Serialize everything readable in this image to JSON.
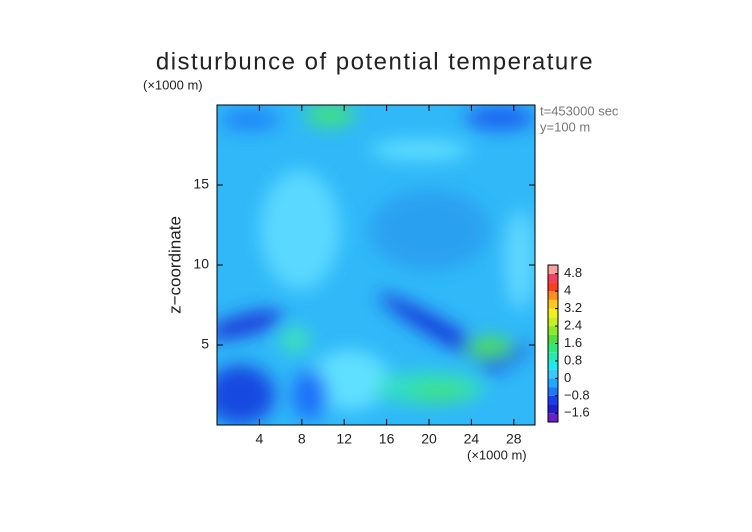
{
  "chart_data": {
    "type": "contour",
    "title": "disturbunce of potential temperature",
    "y_unit_label": "(×1000 m)",
    "x_unit_label": "(×1000 m)",
    "ylabel": "z−coordinate",
    "annotations": [
      "t=453000 sec",
      "y=100 m"
    ],
    "xlim": [
      0,
      30
    ],
    "xticks": [
      4,
      8,
      12,
      16,
      20,
      24,
      28
    ],
    "ylim": [
      0,
      20
    ],
    "yticks": [
      5,
      10,
      15
    ],
    "colorbar": {
      "levels": [
        -2,
        -1.6,
        -1.2,
        -0.8,
        -0.4,
        0,
        0.4,
        0.8,
        1.2,
        1.6,
        2,
        2.4,
        2.8,
        3.2,
        3.6,
        4,
        4.4,
        4.8,
        5.2
      ],
      "colors": [
        "#6a1fc8",
        "#2020d0",
        "#1c3cf0",
        "#1e78ff",
        "#1fa8ff",
        "#3cc8ff",
        "#1ee8f0",
        "#28e8b4",
        "#2ee878",
        "#50e040",
        "#8ce828",
        "#c8f020",
        "#f0f020",
        "#ffc81e",
        "#ff8c1e",
        "#ff3c1e",
        "#f04060",
        "#f8a0a0"
      ],
      "ticks": [
        {
          "value": -1.6,
          "label": "−1.6"
        },
        {
          "value": -0.8,
          "label": "−0.8"
        },
        0,
        0.8,
        1.6,
        2.4,
        3.2,
        4,
        4.8
      ]
    }
  }
}
